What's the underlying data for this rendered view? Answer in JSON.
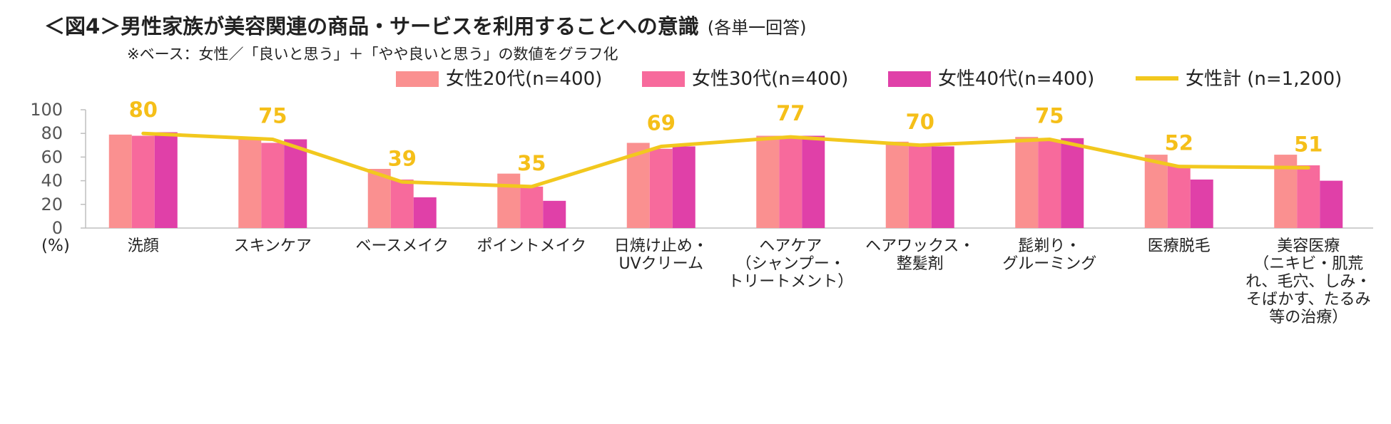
{
  "title": "＜図4＞男性家族が美容関連の商品・サービスを利用することへの意識",
  "title_note": "(各単一回答)",
  "subtitle": "※ベース：女性／「良いと思う」＋「やや良いと思う」の数値をグラフ化",
  "unit_label": "(%)",
  "colors": {
    "women20": "#fa9090",
    "women30": "#f76a9c",
    "women40": "#e040a8",
    "total": "#f2c81e",
    "value_label": "#f5bf19",
    "axis": "#bfbfbf"
  },
  "chart_data": {
    "type": "bar",
    "title": "男性家族が美容関連の商品・サービスを利用することへの意識",
    "ylabel": "(%)",
    "ylim": [
      0,
      100
    ],
    "yticks": [
      "0",
      "20",
      "40",
      "60",
      "80",
      "100"
    ],
    "categories": [
      [
        "洗顔"
      ],
      [
        "スキンケア"
      ],
      [
        "ベースメイク"
      ],
      [
        "ポイントメイク"
      ],
      [
        "日焼け止め・",
        "UVクリーム"
      ],
      [
        "ヘアケア",
        "（シャンプー・",
        "トリートメント）"
      ],
      [
        "ヘアワックス・",
        "整髪剤"
      ],
      [
        "髭剃り・",
        "グルーミング"
      ],
      [
        "医療脱毛"
      ],
      [
        "美容医療",
        "（ニキビ・肌荒",
        "れ、毛穴、しみ・",
        "そばかす、たるみ",
        "等の治療）"
      ]
    ],
    "series": [
      {
        "name": "女性20代(n=400)",
        "kind": "bar",
        "values": [
          79,
          75,
          50,
          46,
          72,
          78,
          73,
          77,
          62,
          62
        ]
      },
      {
        "name": "女性30代(n=400)",
        "kind": "bar",
        "values": [
          78,
          72,
          41,
          35,
          67,
          78,
          70,
          74,
          53,
          53
        ]
      },
      {
        "name": "女性40代(n=400)",
        "kind": "bar",
        "values": [
          81,
          75,
          26,
          23,
          69,
          78,
          69,
          76,
          41,
          40
        ]
      },
      {
        "name": "女性計 (n=1,200)",
        "kind": "line",
        "values": [
          80,
          75,
          39,
          35,
          69,
          77,
          70,
          75,
          52,
          51
        ]
      }
    ],
    "total_labels": [
      "80",
      "75",
      "39",
      "35",
      "69",
      "77",
      "70",
      "75",
      "52",
      "51"
    ]
  }
}
